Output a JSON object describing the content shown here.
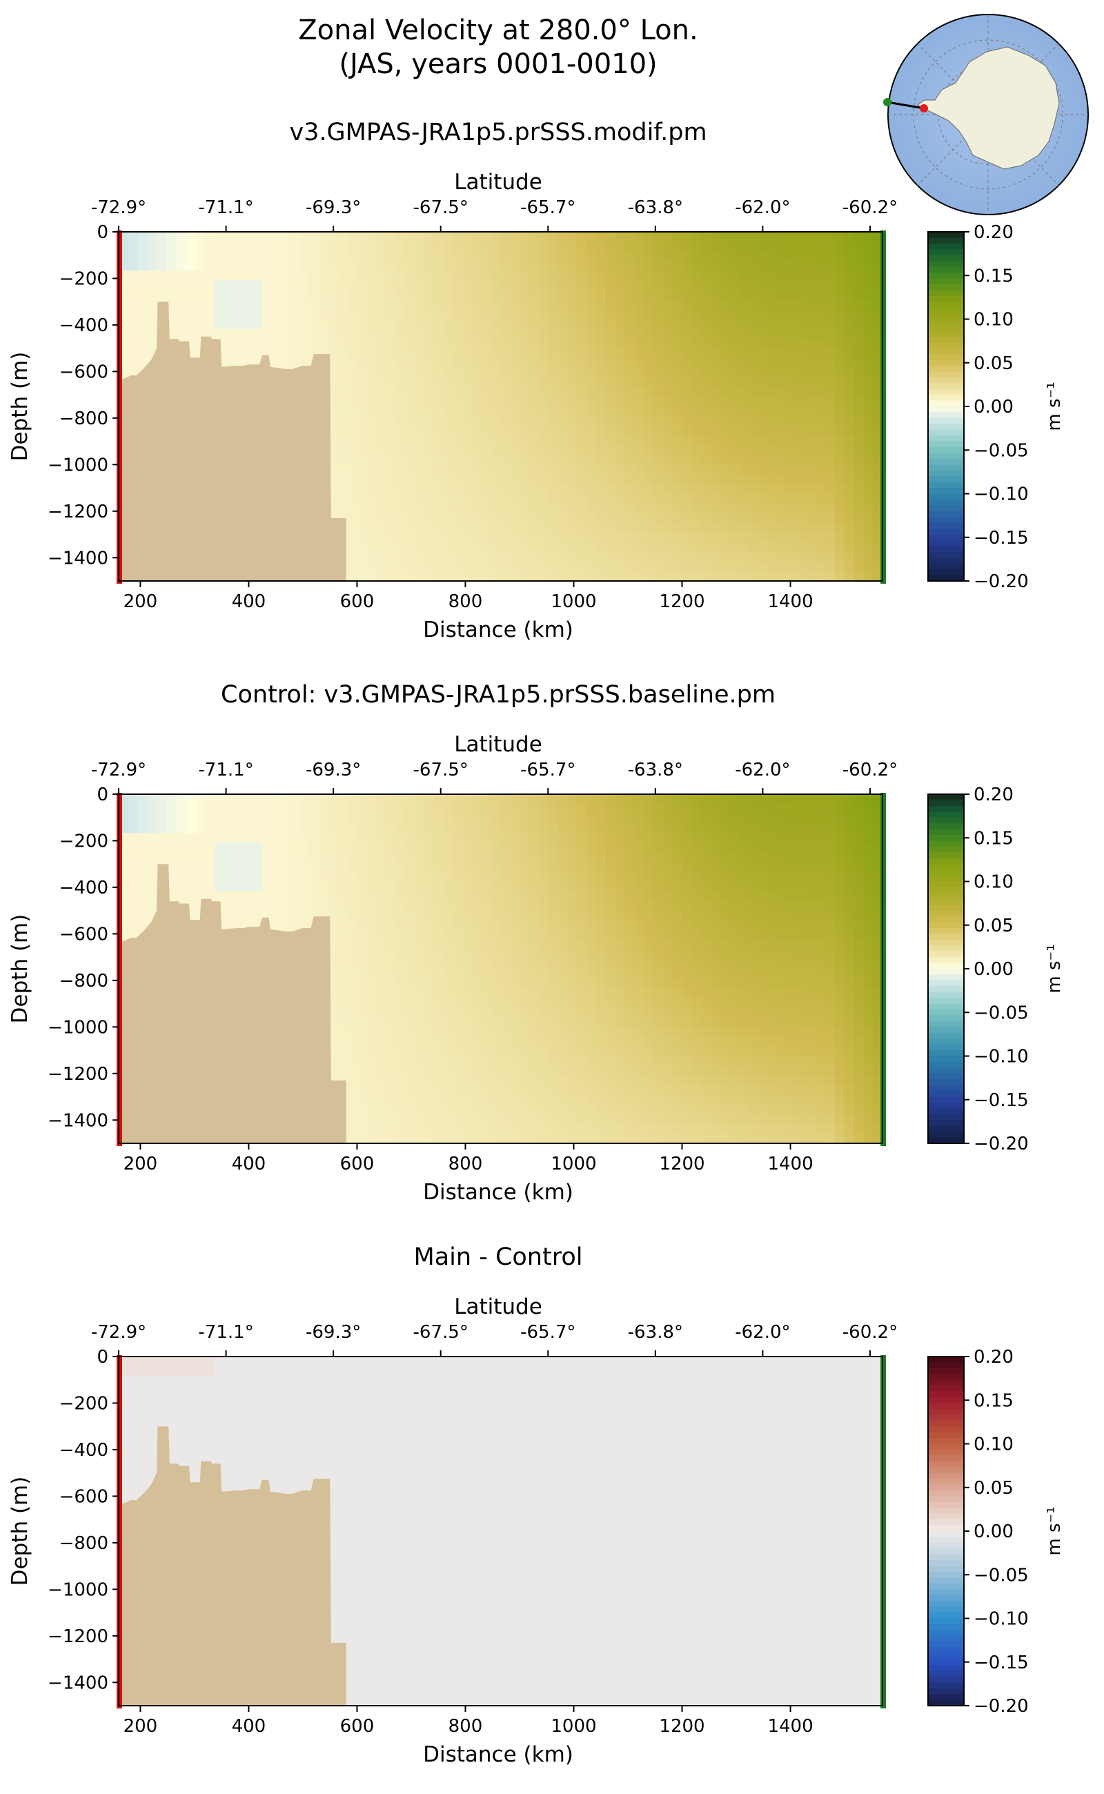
{
  "figure": {
    "title_line1": "Zonal Velocity at 280.0° Lon.",
    "title_line2": "(JAS, years 0001-0010)"
  },
  "inset_map": {
    "ocean_color": "#97b6e1",
    "land_color": "#efefdb",
    "start_marker_color": "#228b22",
    "end_marker_color": "#e31a1c"
  },
  "chart_data": [
    {
      "type": "heatmap",
      "title": "v3.GMPAS-JRA1p5.prSSS.modif.pm",
      "xlabel": "Distance (km)",
      "ylabel": "Depth (m)",
      "top_label": "Latitude",
      "xlim": [
        160,
        1570
      ],
      "ylim": [
        -1500,
        0
      ],
      "x_ticks": [
        200,
        400,
        600,
        800,
        1000,
        1200,
        1400
      ],
      "y_ticks": [
        0,
        -200,
        -400,
        -600,
        -800,
        -1000,
        -1200,
        -1400
      ],
      "lat_ticks": [
        "-72.9°",
        "-71.1°",
        "-69.3°",
        "-67.5°",
        "-65.7°",
        "-63.8°",
        "-62.0°",
        "-60.2°"
      ],
      "colormap": "delta",
      "colorbar_label": "m s⁻¹",
      "colorbar_ticks": [
        0.2,
        0.15,
        0.1,
        0.05,
        0.0,
        -0.05,
        -0.1,
        -0.15,
        -0.2
      ],
      "clim": [
        -0.2,
        0.2
      ]
    },
    {
      "type": "heatmap",
      "title": "Control: v3.GMPAS-JRA1p5.prSSS.baseline.pm",
      "xlabel": "Distance (km)",
      "ylabel": "Depth (m)",
      "top_label": "Latitude",
      "xlim": [
        160,
        1570
      ],
      "ylim": [
        -1500,
        0
      ],
      "x_ticks": [
        200,
        400,
        600,
        800,
        1000,
        1200,
        1400
      ],
      "y_ticks": [
        0,
        -200,
        -400,
        -600,
        -800,
        -1000,
        -1200,
        -1400
      ],
      "lat_ticks": [
        "-72.9°",
        "-71.1°",
        "-69.3°",
        "-67.5°",
        "-65.7°",
        "-63.8°",
        "-62.0°",
        "-60.2°"
      ],
      "colormap": "delta",
      "colorbar_label": "m s⁻¹",
      "colorbar_ticks": [
        0.2,
        0.15,
        0.1,
        0.05,
        0.0,
        -0.05,
        -0.1,
        -0.15,
        -0.2
      ],
      "clim": [
        -0.2,
        0.2
      ]
    },
    {
      "type": "heatmap",
      "title": "Main - Control",
      "xlabel": "Distance (km)",
      "ylabel": "Depth (m)",
      "top_label": "Latitude",
      "xlim": [
        160,
        1570
      ],
      "ylim": [
        -1500,
        0
      ],
      "x_ticks": [
        200,
        400,
        600,
        800,
        1000,
        1200,
        1400
      ],
      "y_ticks": [
        0,
        -200,
        -400,
        -600,
        -800,
        -1000,
        -1200,
        -1400
      ],
      "lat_ticks": [
        "-72.9°",
        "-71.1°",
        "-69.3°",
        "-67.5°",
        "-65.7°",
        "-63.8°",
        "-62.0°",
        "-60.2°"
      ],
      "colormap": "balance",
      "colorbar_label": "m s⁻¹",
      "colorbar_ticks": [
        0.2,
        0.15,
        0.1,
        0.05,
        0.0,
        -0.05,
        -0.1,
        -0.15,
        -0.2
      ],
      "clim": [
        -0.2,
        0.2
      ]
    }
  ],
  "bathymetry": {
    "color": "#d5bf98",
    "distance_km": [
      160,
      170,
      185,
      192,
      205,
      220,
      230,
      232,
      252,
      254,
      270,
      272,
      290,
      292,
      310,
      312,
      330,
      332,
      348,
      350,
      380,
      390,
      400,
      410,
      420,
      425,
      437,
      440,
      470,
      480,
      500,
      515,
      520,
      550,
      552,
      580
    ],
    "depth_m": [
      -640,
      -630,
      -615,
      -618,
      -590,
      -550,
      -500,
      -300,
      -300,
      -460,
      -460,
      -470,
      -470,
      -540,
      -540,
      -450,
      -450,
      -460,
      -460,
      -580,
      -575,
      -575,
      -570,
      -570,
      -570,
      -530,
      -530,
      -580,
      -590,
      -590,
      -575,
      -575,
      -525,
      -525,
      -1230,
      -1230
    ]
  },
  "section_markers": {
    "start_color": "#d21010",
    "end_color": "#1e7d1e"
  }
}
